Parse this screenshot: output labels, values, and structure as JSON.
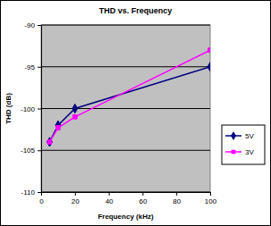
{
  "chart_data": {
    "type": "line",
    "title": "THD vs. Frequency",
    "x_label": "Frequency (kHz)",
    "y_label": "THD (dB)",
    "x": [
      5,
      10,
      20,
      100
    ],
    "series": [
      {
        "name": "5V",
        "color": "#000080",
        "marker": "diamond",
        "values": [
          -104,
          -102,
          -100,
          -95
        ]
      },
      {
        "name": "3V",
        "color": "#ff00ff",
        "marker": "square",
        "values": [
          -104,
          -102.3,
          -101,
          -93
        ]
      }
    ],
    "xlim": [
      0,
      100
    ],
    "xticks": [
      0,
      20,
      40,
      60,
      80,
      100
    ],
    "ylim": [
      -110,
      -90
    ],
    "yticks": [
      -110,
      -105,
      -100,
      -95,
      -90
    ],
    "grid": true,
    "legend": "right"
  }
}
